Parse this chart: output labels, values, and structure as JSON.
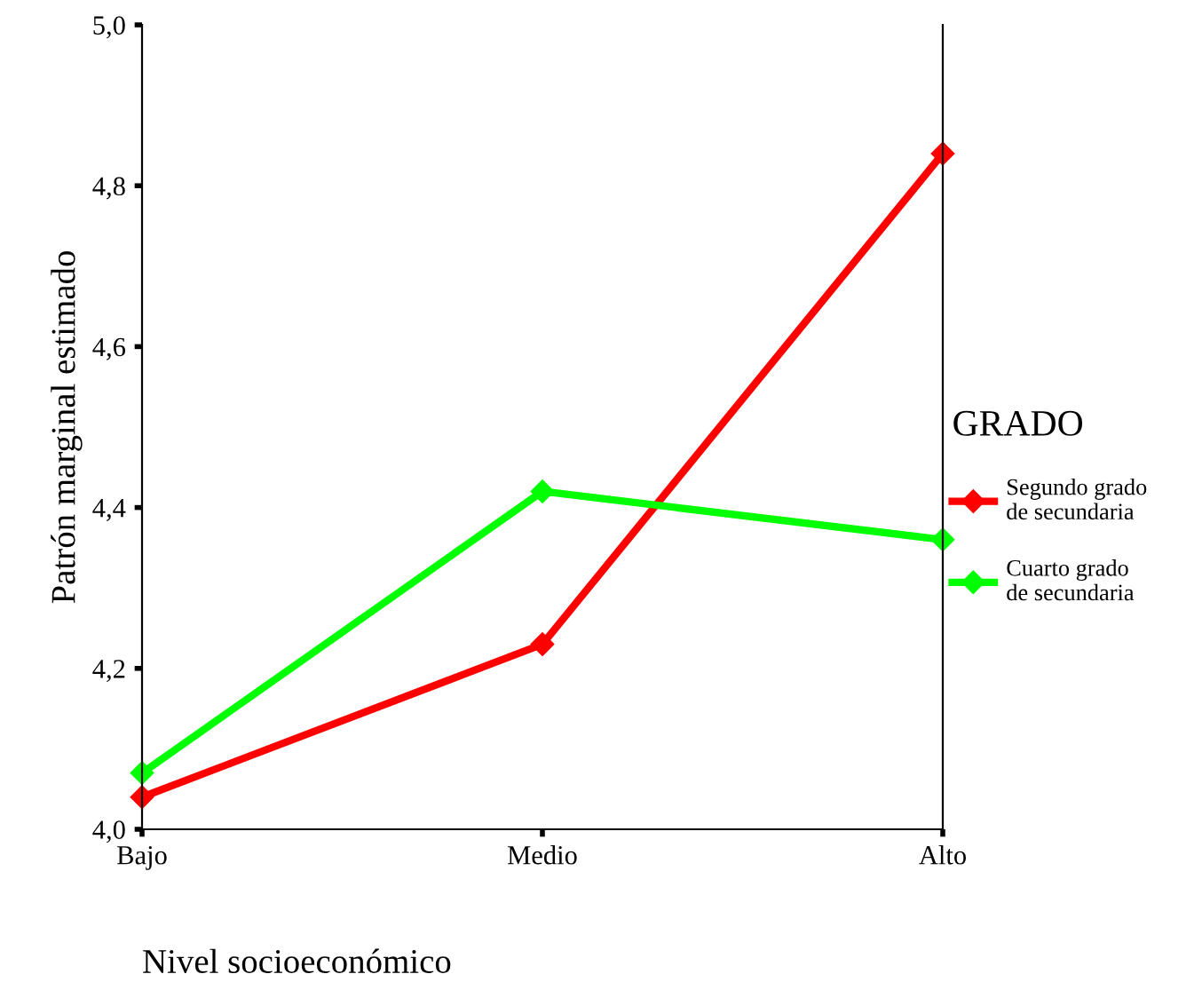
{
  "chart_data": {
    "type": "line",
    "xlabel": "Nivel socioeconómico",
    "ylabel": "Patrón marginal estimado",
    "legend_title": "GRADO",
    "categories": [
      "Bajo",
      "Medio",
      "Alto"
    ],
    "series": [
      {
        "name": "Segundo grado\nde secundaria",
        "color": "#ff0000",
        "values": [
          4.04,
          4.23,
          4.84
        ]
      },
      {
        "name": "Cuarto grado\nde secundaria",
        "color": "#00ff00",
        "values": [
          4.07,
          4.42,
          4.36
        ]
      }
    ],
    "ylim": [
      4.0,
      5.0
    ],
    "yticks": [
      {
        "value": 4.0,
        "label": "4,0"
      },
      {
        "value": 4.2,
        "label": "4,2"
      },
      {
        "value": 4.4,
        "label": "4,4"
      },
      {
        "value": 4.6,
        "label": "4,6"
      },
      {
        "value": 4.8,
        "label": "4,8"
      },
      {
        "value": 5.0,
        "label": "5,0"
      }
    ],
    "marker": "diamond",
    "legend": "right",
    "grid": false
  }
}
